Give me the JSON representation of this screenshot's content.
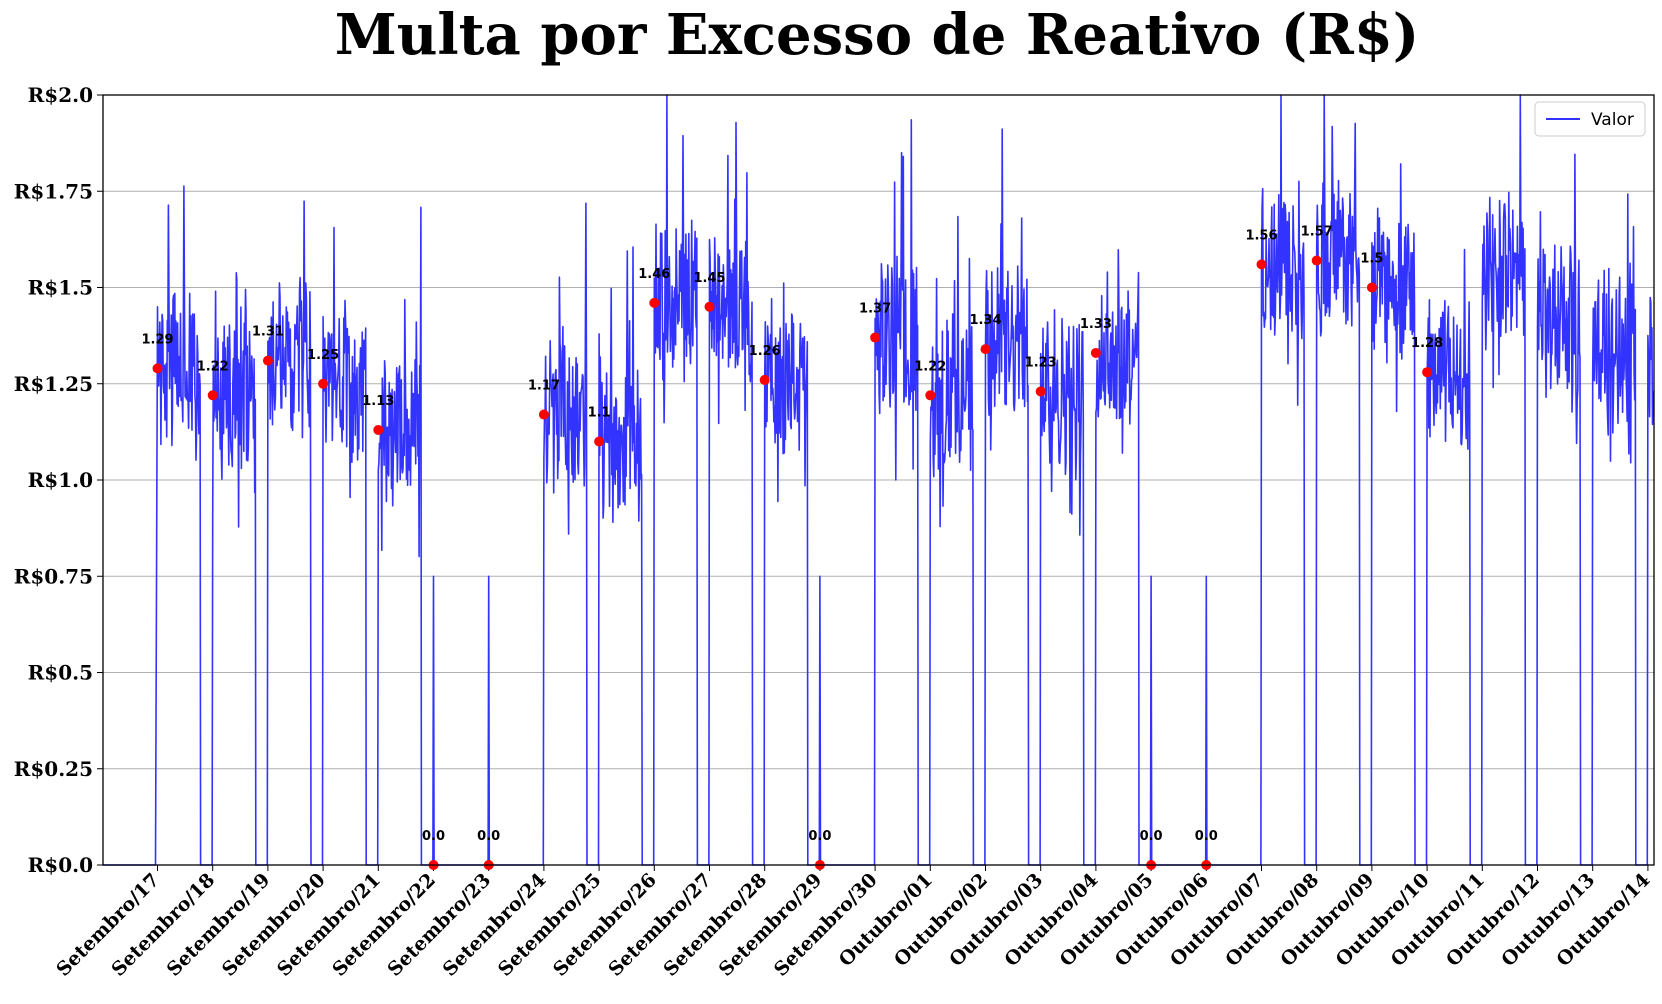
{
  "chart_data": {
    "type": "line",
    "title": "Multa por Excesso de Reativo (R$)",
    "xlabel": "",
    "ylabel": "",
    "ylim": [
      0,
      2.0
    ],
    "y_ticks": [
      "R$0.0",
      "R$0.25",
      "R$0.5",
      "R$0.75",
      "R$1.0",
      "R$1.25",
      "R$1.5",
      "R$1.75",
      "R$2.0"
    ],
    "y_tick_values": [
      0,
      0.25,
      0.5,
      0.75,
      1.0,
      1.25,
      1.5,
      1.75,
      2.0
    ],
    "grid": "horizontal",
    "legend_position": "top-right",
    "series_color": "#3333ff",
    "marker_color": "#ff0000",
    "series": [
      {
        "name": "Valor"
      }
    ],
    "days": [
      {
        "label": "Setembro/17",
        "value": 1.29
      },
      {
        "label": "Setembro/18",
        "value": 1.22
      },
      {
        "label": "Setembro/19",
        "value": 1.31
      },
      {
        "label": "Setembro/20",
        "value": 1.25
      },
      {
        "label": "Setembro/21",
        "value": 1.13
      },
      {
        "label": "Setembro/22",
        "value": 0.0
      },
      {
        "label": "Setembro/23",
        "value": 0.0
      },
      {
        "label": "Setembro/24",
        "value": 1.17
      },
      {
        "label": "Setembro/25",
        "value": 1.1
      },
      {
        "label": "Setembro/26",
        "value": 1.46
      },
      {
        "label": "Setembro/27",
        "value": 1.45
      },
      {
        "label": "Setembro/28",
        "value": 1.26
      },
      {
        "label": "Setembro/29",
        "value": 0.0
      },
      {
        "label": "Setembro/30",
        "value": 1.37
      },
      {
        "label": "Outubro/01",
        "value": 1.22
      },
      {
        "label": "Outubro/02",
        "value": 1.34
      },
      {
        "label": "Outubro/03",
        "value": 1.23
      },
      {
        "label": "Outubro/04",
        "value": 1.33
      },
      {
        "label": "Outubro/05",
        "value": 0.0
      },
      {
        "label": "Outubro/06",
        "value": 0.0
      },
      {
        "label": "Outubro/07",
        "value": 1.56
      },
      {
        "label": "Outubro/08",
        "value": 1.57
      },
      {
        "label": "Outubro/09",
        "value": 1.5
      },
      {
        "label": "Outubro/10",
        "value": 1.28
      }
    ],
    "x_ticks": [
      "Setembro/17",
      "Setembro/18",
      "Setembro/19",
      "Setembro/20",
      "Setembro/21",
      "Setembro/22",
      "Setembro/23",
      "Setembro/24",
      "Setembro/25",
      "Setembro/26",
      "Setembro/27",
      "Setembro/28",
      "Setembro/29",
      "Setembro/30",
      "Outubro/01",
      "Outubro/02",
      "Outubro/03",
      "Outubro/04",
      "Outubro/05",
      "Outubro/06",
      "Outubro/07",
      "Outubro/08",
      "Outubro/09",
      "Outubro/10",
      "Outubro/11",
      "Outubro/12",
      "Outubro/13",
      "Outubro/14"
    ],
    "data_labels": [
      "1.29",
      "1.22",
      "1.31",
      "1.25",
      "1.13",
      "0.0",
      "0.0",
      "1.17",
      "1.1",
      "1.46",
      "1.45",
      "1.26",
      "0.0",
      "1.37",
      "1.22",
      "1.34",
      "1.23",
      "1.33",
      "0.0",
      "0.0",
      "1.56",
      "1.57",
      "1.5",
      "1.28"
    ]
  }
}
